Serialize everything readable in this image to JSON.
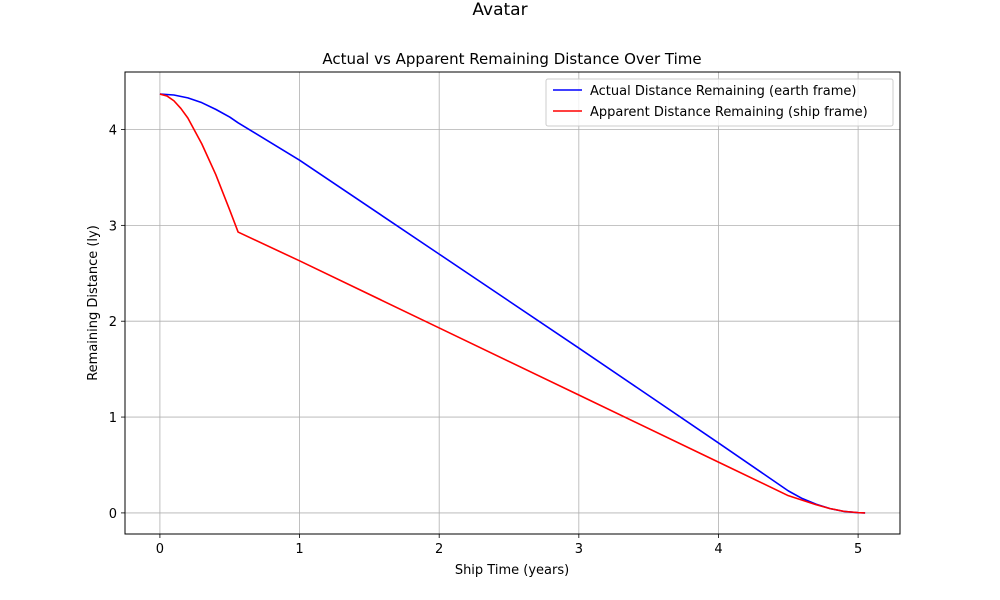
{
  "figure": {
    "suptitle": "Avatar"
  },
  "chart_data": {
    "type": "line",
    "title": "Actual vs Apparent Remaining Distance Over Time",
    "xlabel": "Ship Time (years)",
    "ylabel": "Remaining Distance (ly)",
    "xlim": [
      -0.25,
      5.3
    ],
    "ylim": [
      -0.22,
      4.6
    ],
    "xticks": [
      0,
      1,
      2,
      3,
      4,
      5
    ],
    "yticks": [
      0,
      1,
      2,
      3,
      4
    ],
    "grid": true,
    "legend_position": "top-right",
    "series": [
      {
        "name": "Actual Distance Remaining (earth frame)",
        "color": "#0000ff",
        "x": [
          0,
          0.1,
          0.2,
          0.3,
          0.4,
          0.5,
          0.56,
          1.0,
          2.0,
          3.0,
          4.0,
          4.5,
          4.6,
          4.7,
          4.8,
          4.9,
          5.0,
          5.05
        ],
        "y": [
          4.37,
          4.36,
          4.33,
          4.28,
          4.21,
          4.13,
          4.07,
          3.68,
          2.7,
          1.72,
          0.73,
          0.23,
          0.15,
          0.09,
          0.045,
          0.015,
          0.002,
          0.0
        ]
      },
      {
        "name": "Apparent Distance Remaining (ship frame)",
        "color": "#ff0000",
        "x": [
          0,
          0.05,
          0.1,
          0.15,
          0.2,
          0.3,
          0.4,
          0.5,
          0.56,
          1.0,
          2.0,
          3.0,
          4.0,
          4.5,
          4.7,
          4.8,
          4.9,
          5.0,
          5.05
        ],
        "y": [
          4.37,
          4.35,
          4.3,
          4.22,
          4.12,
          3.85,
          3.53,
          3.16,
          2.93,
          2.63,
          1.93,
          1.23,
          0.53,
          0.18,
          0.085,
          0.045,
          0.016,
          0.003,
          0.0
        ]
      }
    ]
  }
}
